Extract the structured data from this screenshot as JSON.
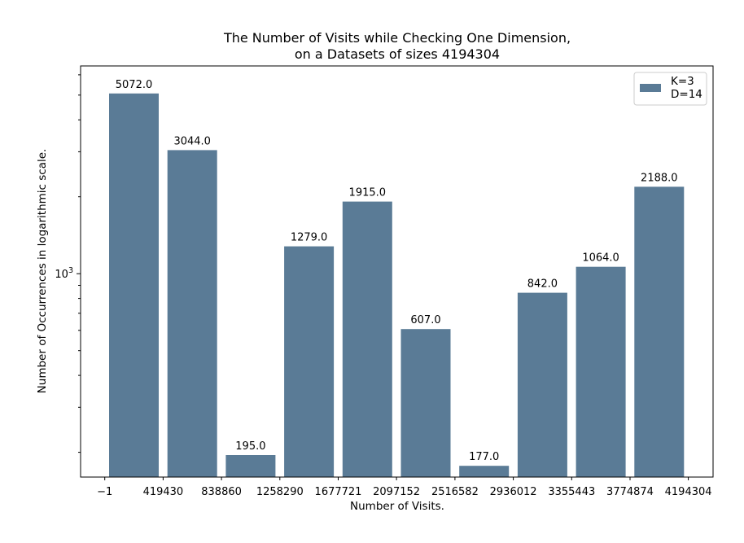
{
  "chart_data": {
    "type": "bar",
    "title": "The Number of Visits while Checking One Dimension,",
    "subtitle": "on a Datasets of sizes 4194304",
    "xlabel": "Number of Visits.",
    "ylabel": "Number of Occurrences in logarithmic scale.",
    "yscale": "log",
    "ylim": [
      160,
      6500
    ],
    "y_ticks": [
      {
        "value": 1000,
        "label_base": "10",
        "label_exp": "3"
      }
    ],
    "x_tick_labels": [
      "−1",
      "419430",
      "838860",
      "1258290",
      "1677721",
      "2097152",
      "2516582",
      "2936012",
      "3355443",
      "3774874",
      "4194304"
    ],
    "values": [
      5072.0,
      3044.0,
      195.0,
      1279.0,
      1915.0,
      607.0,
      177.0,
      842.0,
      1064.0,
      2188.0
    ],
    "value_labels": [
      "5072.0",
      "3044.0",
      "195.0",
      "1279.0",
      "1915.0",
      "607.0",
      "177.0",
      "842.0",
      "1064.0",
      "2188.0"
    ],
    "legend": {
      "position": "top-right",
      "line1": "K=3",
      "line2": "D=14"
    },
    "bar_color": "#5a7b96",
    "grid": false
  }
}
